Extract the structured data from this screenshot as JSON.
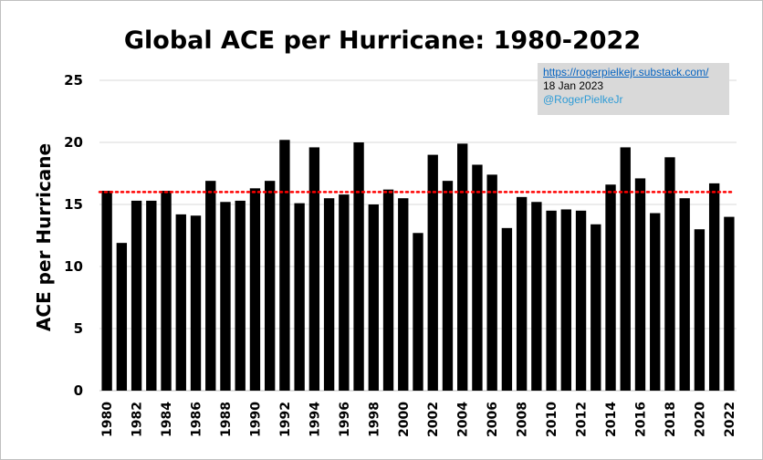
{
  "chart_data": {
    "type": "bar",
    "title": "Global ACE per Hurricane: 1980-2022",
    "xlabel": "",
    "ylabel": "ACE per Hurricane",
    "ylim": [
      0,
      25
    ],
    "yticks": [
      "0",
      "5",
      "10",
      "15",
      "20",
      "25"
    ],
    "grid": true,
    "categories": [
      1980,
      1981,
      1982,
      1983,
      1984,
      1985,
      1986,
      1987,
      1988,
      1989,
      1990,
      1991,
      1992,
      1993,
      1994,
      1995,
      1996,
      1997,
      1998,
      1999,
      2000,
      2001,
      2002,
      2003,
      2004,
      2005,
      2006,
      2007,
      2008,
      2009,
      2010,
      2011,
      2012,
      2013,
      2014,
      2015,
      2016,
      2017,
      2018,
      2019,
      2020,
      2021,
      2022
    ],
    "xtick_labels": [
      "1980",
      "1982",
      "1984",
      "1986",
      "1988",
      "1990",
      "1992",
      "1994",
      "1996",
      "1998",
      "2000",
      "2002",
      "2004",
      "2006",
      "2008",
      "2010",
      "2012",
      "2014",
      "2016",
      "2018",
      "2020",
      "2022"
    ],
    "values": [
      16.1,
      11.9,
      15.3,
      15.3,
      16.1,
      14.2,
      14.1,
      16.9,
      15.2,
      15.3,
      16.3,
      16.9,
      20.2,
      15.1,
      19.6,
      15.5,
      15.8,
      20.0,
      15.0,
      16.2,
      15.5,
      12.7,
      19.0,
      16.9,
      19.9,
      18.2,
      17.4,
      13.1,
      15.6,
      15.2,
      14.5,
      14.6,
      14.5,
      13.4,
      16.6,
      19.6,
      17.1,
      14.3,
      18.8,
      15.5,
      13.0,
      16.7,
      14.0
    ],
    "bar_color": "#000000",
    "average_line": {
      "value": 16.0,
      "color": "#ff0000",
      "style": "dotted"
    }
  },
  "source_box": {
    "url": "https://rogerpielkejr.substack.com/",
    "date": "18 Jan 2023",
    "handle": "@RogerPielkeJr"
  }
}
